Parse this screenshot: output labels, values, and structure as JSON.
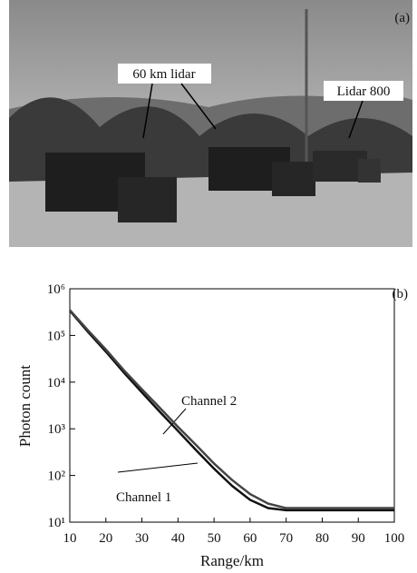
{
  "photo": {
    "panel_label": "(a)",
    "annotations": [
      "60 km lidar",
      "Lidar 800"
    ]
  },
  "chart_data": {
    "type": "line",
    "panel_label": "(b)",
    "x_label": "Range/km",
    "y_label": "Photon count",
    "x": [
      10,
      15,
      20,
      25,
      30,
      35,
      40,
      45,
      50,
      55,
      60,
      65,
      70,
      75,
      80,
      85,
      90,
      95,
      100
    ],
    "series": [
      {
        "name": "Channel 1",
        "color": "#111111",
        "values": [
          340000,
          120000,
          45000,
          16000,
          6000,
          2300,
          900,
          350,
          140,
          60,
          30,
          20,
          18,
          18,
          18,
          18,
          18,
          18,
          18
        ]
      },
      {
        "name": "Channel 2",
        "color": "#444444",
        "values": [
          350000,
          130000,
          50000,
          18000,
          7000,
          2800,
          1100,
          450,
          180,
          80,
          40,
          25,
          20,
          20,
          20,
          20,
          20,
          20,
          20
        ]
      }
    ],
    "xlim": [
      10,
      100
    ],
    "xticks": [
      10,
      20,
      30,
      40,
      50,
      60,
      70,
      80,
      90,
      100
    ],
    "ylim": [
      10,
      1000000
    ],
    "yscale": "log",
    "yticks": [
      {
        "value": 10,
        "label": "10¹"
      },
      {
        "value": 100,
        "label": "10²"
      },
      {
        "value": 1000,
        "label": "10³"
      },
      {
        "value": 10000,
        "label": "10⁴"
      },
      {
        "value": 100000,
        "label": "10⁵"
      },
      {
        "value": 1000000,
        "label": "10⁶"
      }
    ],
    "grid": false
  }
}
